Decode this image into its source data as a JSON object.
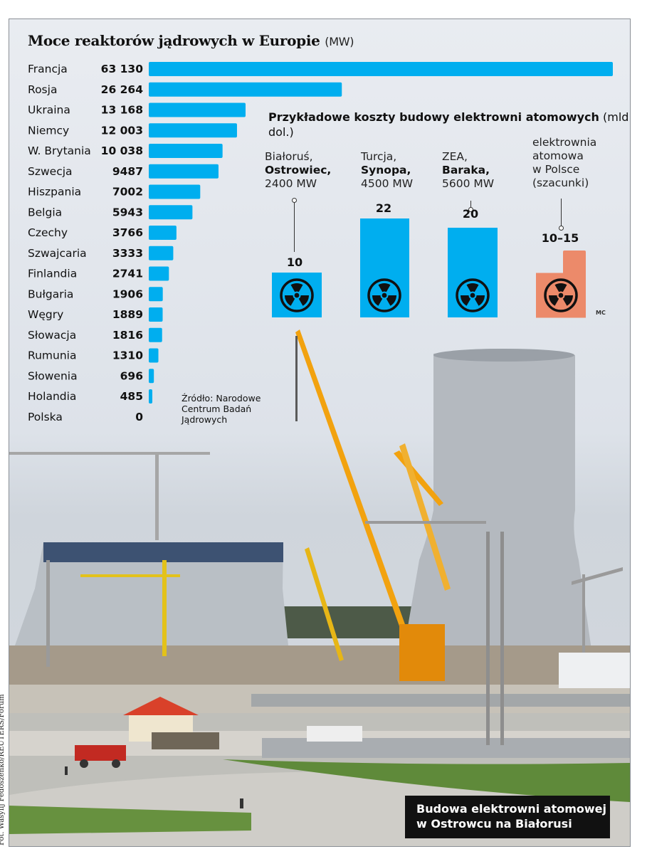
{
  "chart_data": [
    {
      "type": "bar",
      "orientation": "horizontal",
      "title": "Moce reaktorów jądrowych w Europie",
      "unit": "(MW)",
      "categories": [
        "Francja",
        "Rosja",
        "Ukraina",
        "Niemcy",
        "W. Brytania",
        "Szwecja",
        "Hiszpania",
        "Belgia",
        "Czechy",
        "Szwajcaria",
        "Finlandia",
        "Bułgaria",
        "Węgry",
        "Słowacja",
        "Rumunia",
        "Słowenia",
        "Holandia",
        "Polska"
      ],
      "values": [
        63130,
        26264,
        13168,
        12003,
        10038,
        9487,
        7002,
        5943,
        3766,
        3333,
        2741,
        1906,
        1889,
        1816,
        1310,
        696,
        485,
        0
      ],
      "value_labels": [
        "63 130",
        "26 264",
        "13 168",
        "12 003",
        "10 038",
        "9487",
        "7002",
        "5943",
        "3766",
        "3333",
        "2741",
        "1906",
        "1889",
        "1816",
        "1310",
        "696",
        "485",
        "0"
      ],
      "color": "#00aeef",
      "source": "Źródło: Narodowe\nCentrum Badań\nJądrowych"
    },
    {
      "type": "bar",
      "title_bold": "Przykładowe koszty budowy elektrowni atomowych",
      "title_unit": "(mld dol.)",
      "items": [
        {
          "line1": "Białoruś,",
          "name": "Ostrowiec,",
          "line3": "2400 MW",
          "value": 10,
          "label": "10",
          "color": "#00aeef"
        },
        {
          "line1": "Turcja,",
          "name": "Synopa,",
          "line3": "4500 MW",
          "value": 22,
          "label": "22",
          "color": "#00aeef"
        },
        {
          "line1": "ZEA,",
          "name": "Baraka,",
          "line3": "5600 MW",
          "value": 20,
          "label": "20",
          "color": "#00aeef"
        },
        {
          "lines": [
            "elektrownia",
            "atomowa",
            "w Polsce",
            "(szacunki)"
          ],
          "value_low": 10,
          "value_high": 15,
          "label": "10–15",
          "color": "#ec8a6a"
        }
      ],
      "icon": "radiation-icon"
    }
  ],
  "initials": "MC",
  "caption": [
    "Budowa elektrowni atomowej",
    "w Ostrowcu na Białorusi"
  ],
  "photo_credit": "Fot. Wasylij Fedoszenko/REUTERS/Forum"
}
